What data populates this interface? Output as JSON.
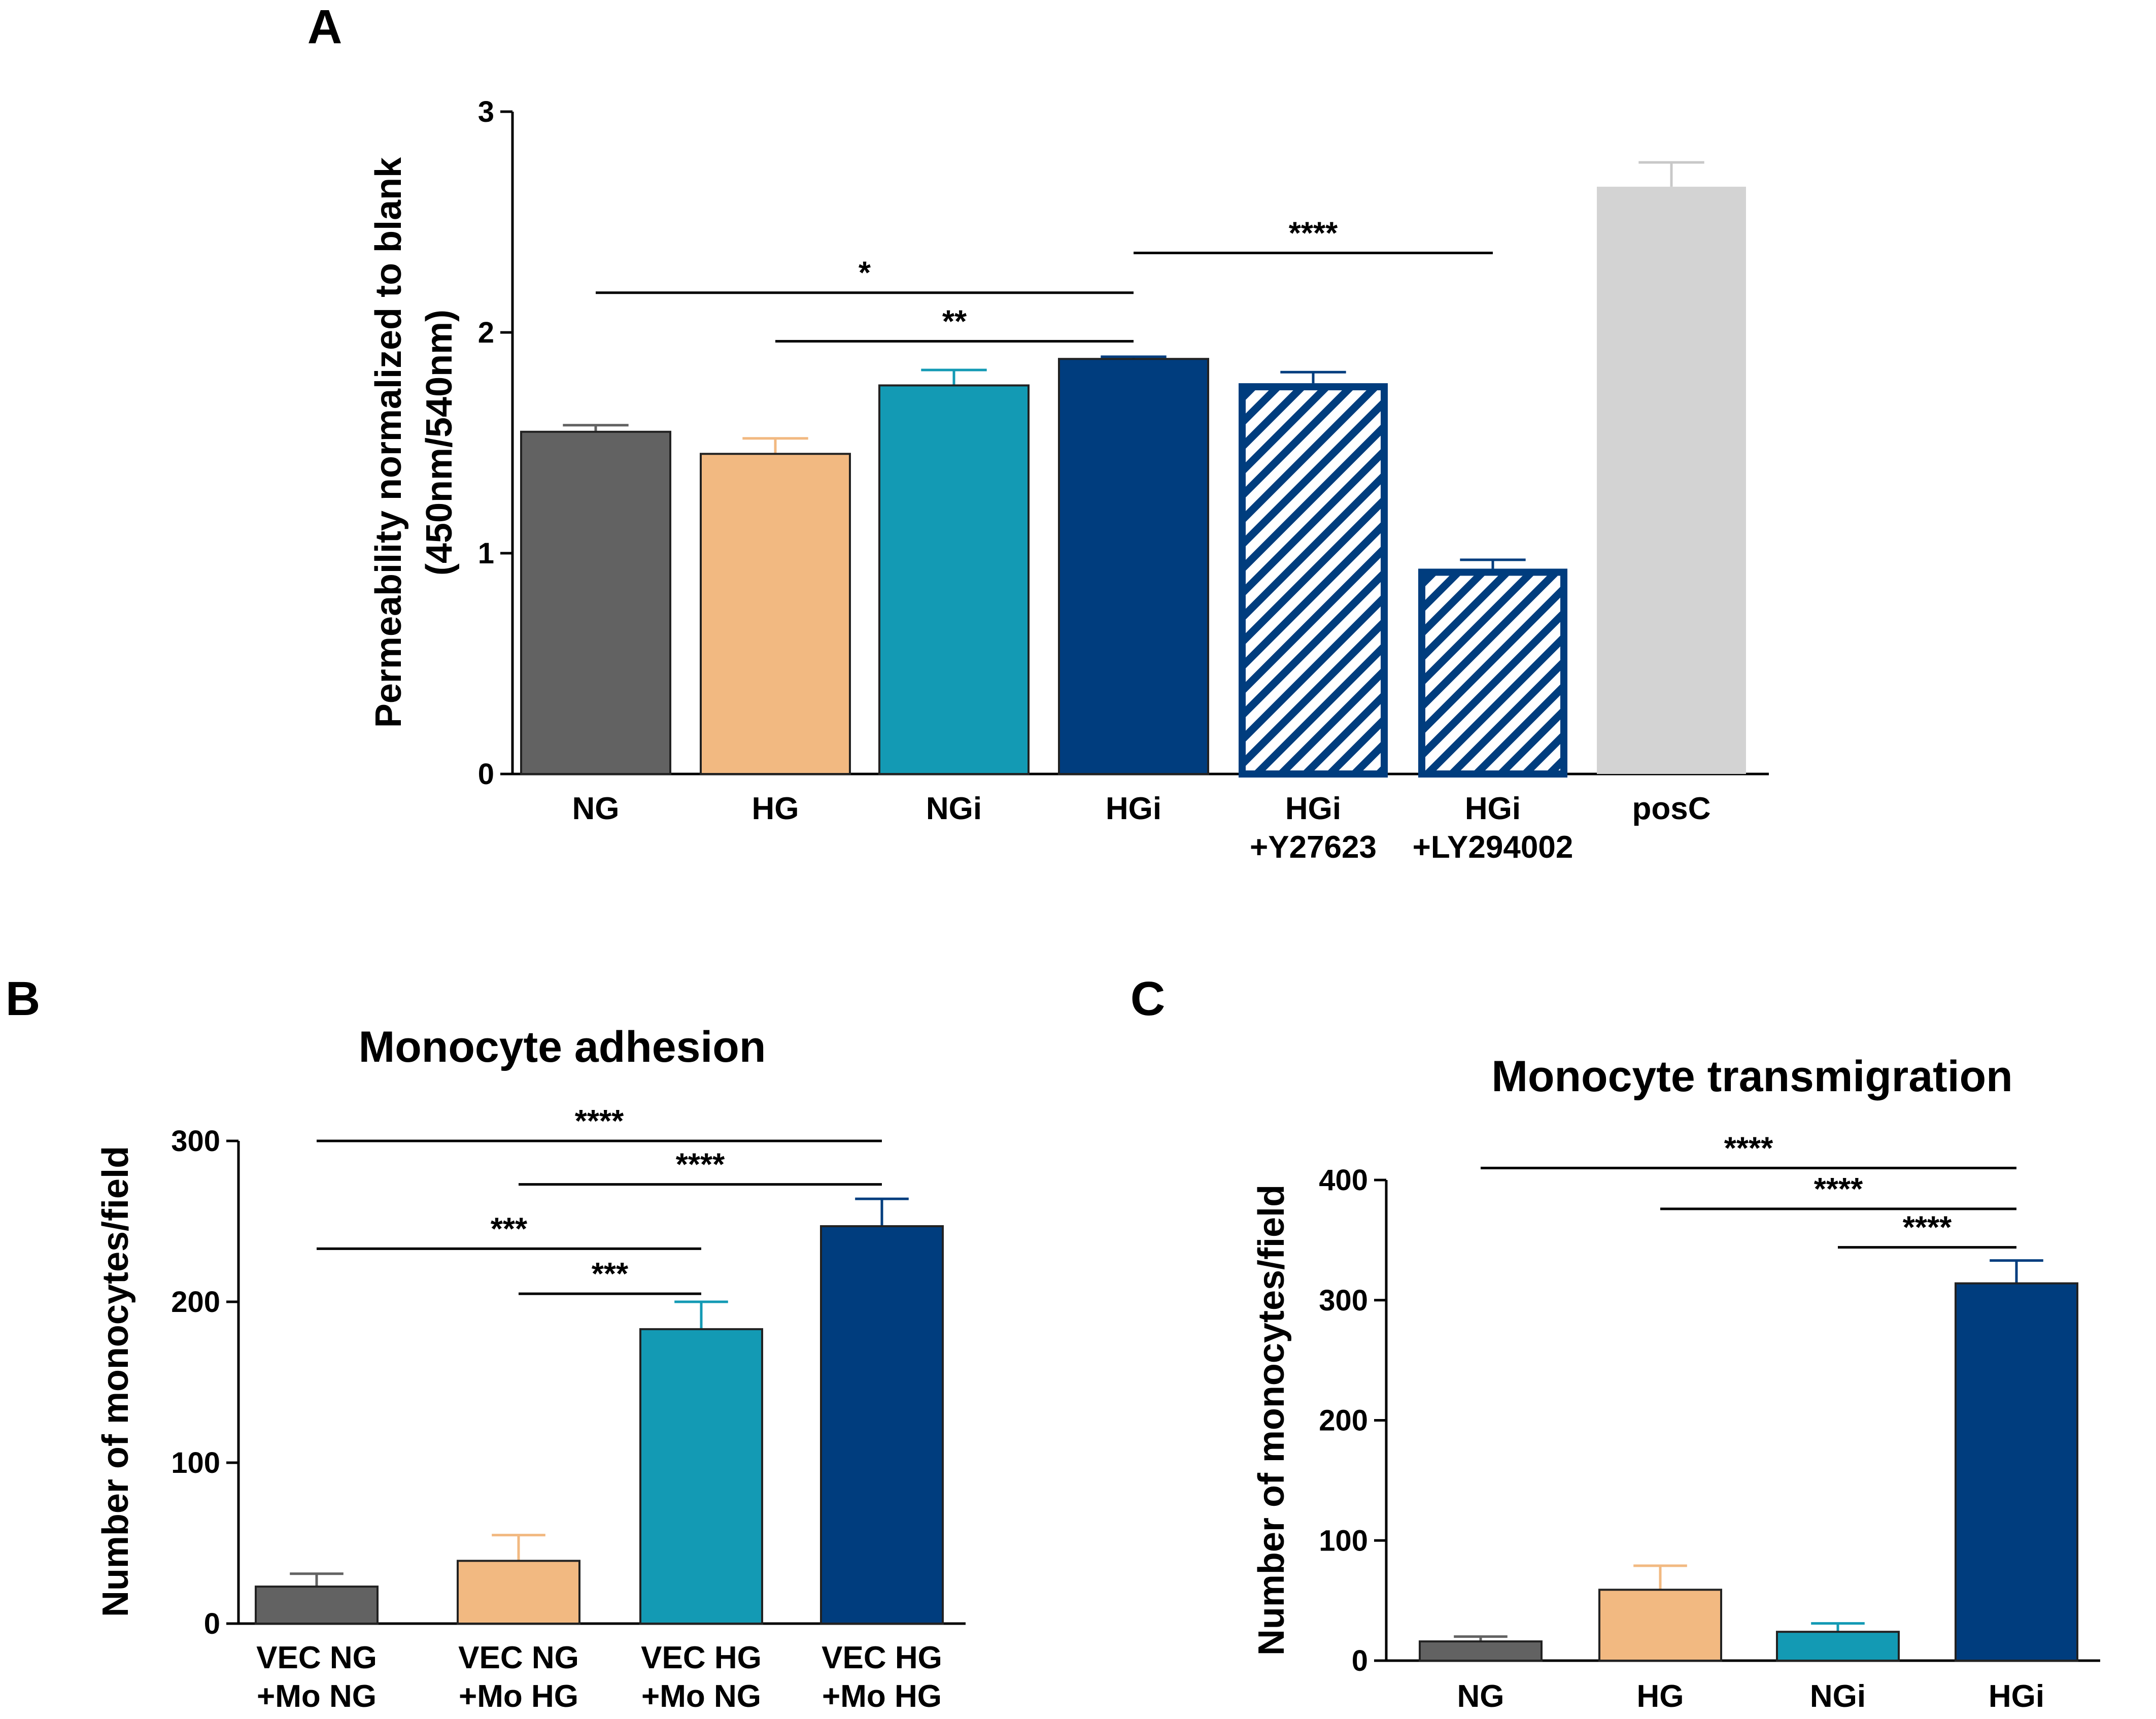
{
  "chart_data": [
    {
      "panel": "A",
      "type": "bar",
      "title": "",
      "ylabel": [
        "Permeability normalized to blank",
        "(450nm/540nm)"
      ],
      "xlabel": "",
      "ylim": [
        0,
        3
      ],
      "yticks": [
        0,
        1,
        2,
        3
      ],
      "categories": [
        [
          "NG"
        ],
        [
          "HG"
        ],
        [
          "NGi"
        ],
        [
          "HGi"
        ],
        [
          "HGi",
          "+Y27623"
        ],
        [
          "HGi",
          "+LY294002"
        ],
        [
          "posC"
        ]
      ],
      "values": [
        1.55,
        1.45,
        1.76,
        1.88,
        1.77,
        0.93,
        2.66
      ],
      "errors": [
        0.03,
        0.07,
        0.07,
        0.01,
        0.05,
        0.04,
        0.11
      ],
      "colors": [
        "#626262",
        "#f2b981",
        "#139ab4",
        "#003d7e",
        "#003d7e",
        "#003d7e",
        "#d3d3d3"
      ],
      "hatched": [
        false,
        false,
        false,
        false,
        true,
        true,
        false
      ],
      "significance": [
        {
          "from": 0,
          "to": 3,
          "y": 2.18,
          "label": "*"
        },
        {
          "from": 1,
          "to": 3,
          "y": 1.96,
          "label": "**"
        },
        {
          "from": 3,
          "to": 5,
          "y": 2.36,
          "label": "****"
        }
      ]
    },
    {
      "panel": "B",
      "type": "bar",
      "title": "Monocyte adhesion",
      "ylabel": [
        "Number of monocytes/field"
      ],
      "xlabel": "",
      "ylim": [
        0,
        300
      ],
      "yticks": [
        0,
        100,
        200,
        300
      ],
      "categories": [
        [
          "VEC NG",
          "+Mo NG"
        ],
        [
          "VEC NG",
          "+Mo HG"
        ],
        [
          "VEC HG",
          "+Mo NG"
        ],
        [
          "VEC HG",
          "+Mo HG"
        ]
      ],
      "values": [
        23,
        39,
        183,
        247
      ],
      "errors": [
        8,
        16,
        17,
        17
      ],
      "colors": [
        "#626262",
        "#f2b981",
        "#139ab4",
        "#003d7e"
      ],
      "hatched": [
        false,
        false,
        false,
        false
      ],
      "significance": [
        {
          "from": 0,
          "to": 3,
          "y": 300,
          "label": "****"
        },
        {
          "from": 1,
          "to": 3,
          "y": 273,
          "label": "****"
        },
        {
          "from": 0,
          "to": 2,
          "y": 233,
          "label": "***"
        },
        {
          "from": 1,
          "to": 2,
          "y": 205,
          "label": "***"
        }
      ]
    },
    {
      "panel": "C",
      "type": "bar",
      "title": "Monocyte transmigration",
      "ylabel": [
        "Number of monocytes/field"
      ],
      "xlabel": "",
      "ylim": [
        0,
        400
      ],
      "yticks": [
        0,
        100,
        200,
        300,
        400
      ],
      "categories": [
        [
          "NG"
        ],
        [
          "HG"
        ],
        [
          "NGi"
        ],
        [
          "HGi"
        ]
      ],
      "values": [
        16,
        59,
        24,
        314
      ],
      "errors": [
        4,
        20,
        7,
        19
      ],
      "colors": [
        "#626262",
        "#f2b981",
        "#139ab4",
        "#003d7e"
      ],
      "hatched": [
        false,
        false,
        false,
        false
      ],
      "significance": [
        {
          "from": 0,
          "to": 3,
          "y": 410,
          "label": "****"
        },
        {
          "from": 1,
          "to": 3,
          "y": 376,
          "label": "****"
        },
        {
          "from": 2,
          "to": 3,
          "y": 344,
          "label": "****"
        }
      ]
    }
  ]
}
